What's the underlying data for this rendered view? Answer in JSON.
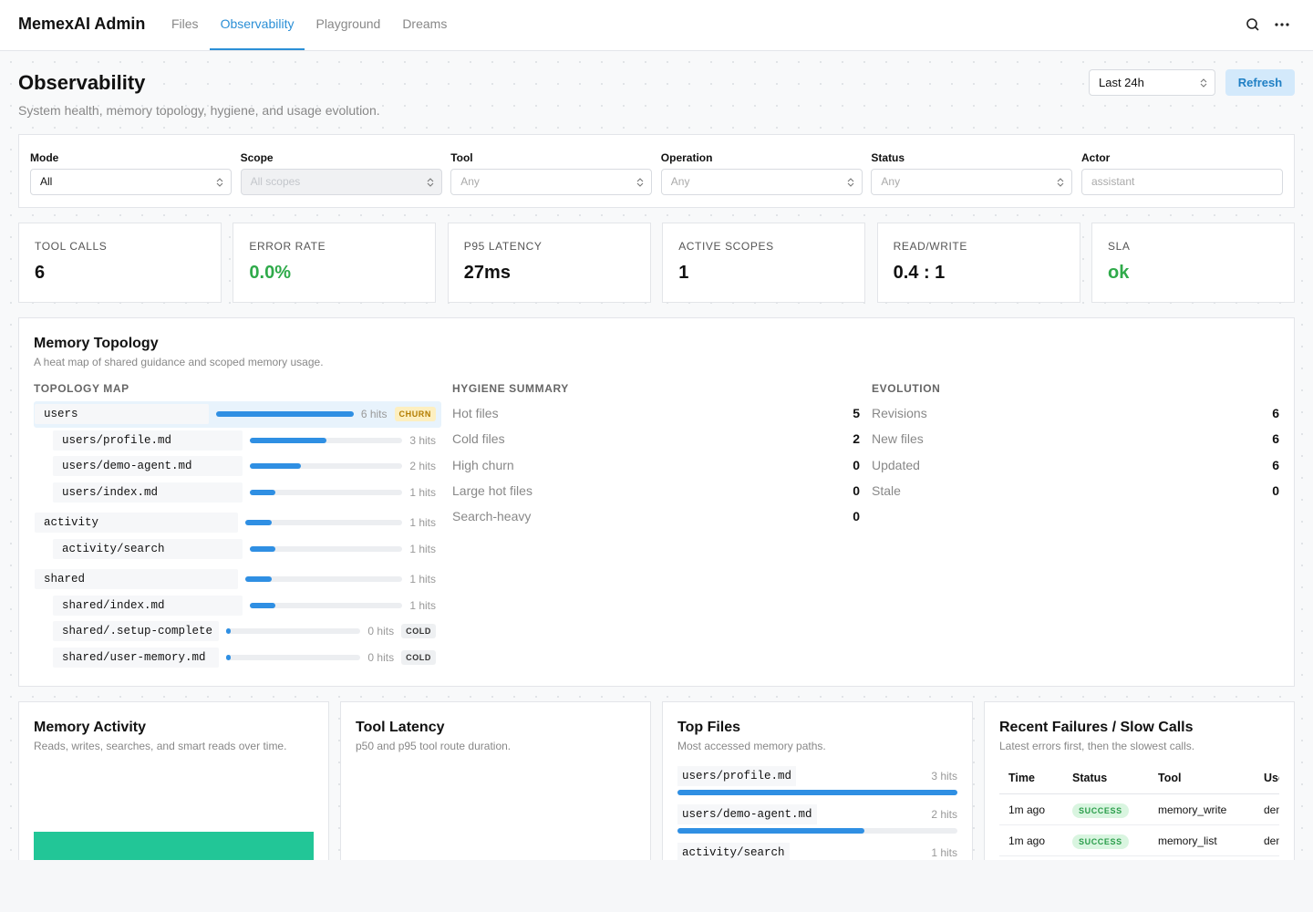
{
  "nav": {
    "brand": "MemexAI Admin",
    "tabs": [
      "Files",
      "Observability",
      "Playground",
      "Dreams"
    ]
  },
  "header": {
    "title": "Observability",
    "subtitle": "System health, memory topology, hygiene, and usage evolution.",
    "range": "Last 24h",
    "refresh": "Refresh"
  },
  "filters": [
    {
      "label": "Mode",
      "value": "All"
    },
    {
      "label": "Scope",
      "value": "All scopes"
    },
    {
      "label": "Tool",
      "value": "Any"
    },
    {
      "label": "Operation",
      "value": "Any"
    },
    {
      "label": "Status",
      "value": "Any"
    },
    {
      "label": "Actor",
      "value": "assistant"
    }
  ],
  "stats": [
    {
      "label": "TOOL CALLS",
      "value": 6
    },
    {
      "label": "ERROR RATE",
      "value": "0.0%"
    },
    {
      "label": "P95 LATENCY",
      "value": "27ms"
    },
    {
      "label": "ACTIVE SCOPES",
      "value": 1
    },
    {
      "label": "READ/WRITE",
      "value": "0.4 : 1"
    },
    {
      "label": "SLA",
      "value": "ok"
    }
  ],
  "topology": {
    "title": "Memory Topology",
    "subtitle": "A heat map of shared guidance and scoped memory usage.",
    "map": {
      "heading": "TOPOLOGY MAP",
      "groups": [
        {
          "path": "users",
          "hits": 6,
          "hits_label": "6 hits",
          "badge": "CHURN",
          "children": [
            {
              "path": "users/profile.md",
              "hits": 3,
              "hits_label": "3 hits"
            },
            {
              "path": "users/demo-agent.md",
              "hits": 2,
              "hits_label": "2 hits"
            },
            {
              "path": "users/index.md",
              "hits": 1,
              "hits_label": "1 hits"
            }
          ]
        },
        {
          "path": "activity",
          "hits": 1,
          "hits_label": "1 hits",
          "children": [
            {
              "path": "activity/search",
              "hits": 1,
              "hits_label": "1 hits"
            }
          ]
        },
        {
          "path": "shared",
          "hits": 1,
          "hits_label": "1 hits",
          "children": [
            {
              "path": "shared/index.md",
              "hits": 1,
              "hits_label": "1 hits"
            },
            {
              "path": "shared/.setup-complete",
              "hits": 0,
              "hits_label": "0 hits",
              "badge": "COLD"
            },
            {
              "path": "shared/user-memory.md",
              "hits": 0,
              "hits_label": "0 hits",
              "badge": "COLD"
            }
          ]
        }
      ]
    },
    "hygiene": {
      "heading": "HYGIENE SUMMARY",
      "rows": [
        {
          "label": "Hot files",
          "value": 5
        },
        {
          "label": "Cold files",
          "value": 2
        },
        {
          "label": "High churn",
          "value": 0
        },
        {
          "label": "Large hot files",
          "value": 0
        },
        {
          "label": "Search-heavy",
          "value": 0
        }
      ]
    },
    "evolution": {
      "heading": "EVOLUTION",
      "rows": [
        {
          "label": "Revisions",
          "value": 6
        },
        {
          "label": "New files",
          "value": 6
        },
        {
          "label": "Updated",
          "value": 6
        },
        {
          "label": "Stale",
          "value": 0
        }
      ]
    }
  },
  "memory_activity": {
    "title": "Memory Activity",
    "subtitle": "Reads, writes, searches, and smart reads over time."
  },
  "tool_latency": {
    "title": "Tool Latency",
    "subtitle": "p50 and p95 tool route duration."
  },
  "top_files": {
    "title": "Top Files",
    "subtitle": "Most accessed memory paths.",
    "items": [
      {
        "path": "users/profile.md",
        "hits": 3,
        "hits_label": "3 hits"
      },
      {
        "path": "users/demo-agent.md",
        "hits": 2,
        "hits_label": "2 hits"
      },
      {
        "path": "activity/search",
        "hits": 1,
        "hits_label": "1 hits"
      }
    ]
  },
  "failures": {
    "title": "Recent Failures / Slow Calls",
    "subtitle": "Latest errors first, then the slowest calls.",
    "columns": [
      "Time",
      "Status",
      "Tool",
      "User"
    ],
    "rows": [
      [
        "1m ago",
        "SUCCESS",
        "memory_write",
        "demo"
      ],
      [
        "1m ago",
        "SUCCESS",
        "memory_list",
        "demo"
      ]
    ]
  }
}
